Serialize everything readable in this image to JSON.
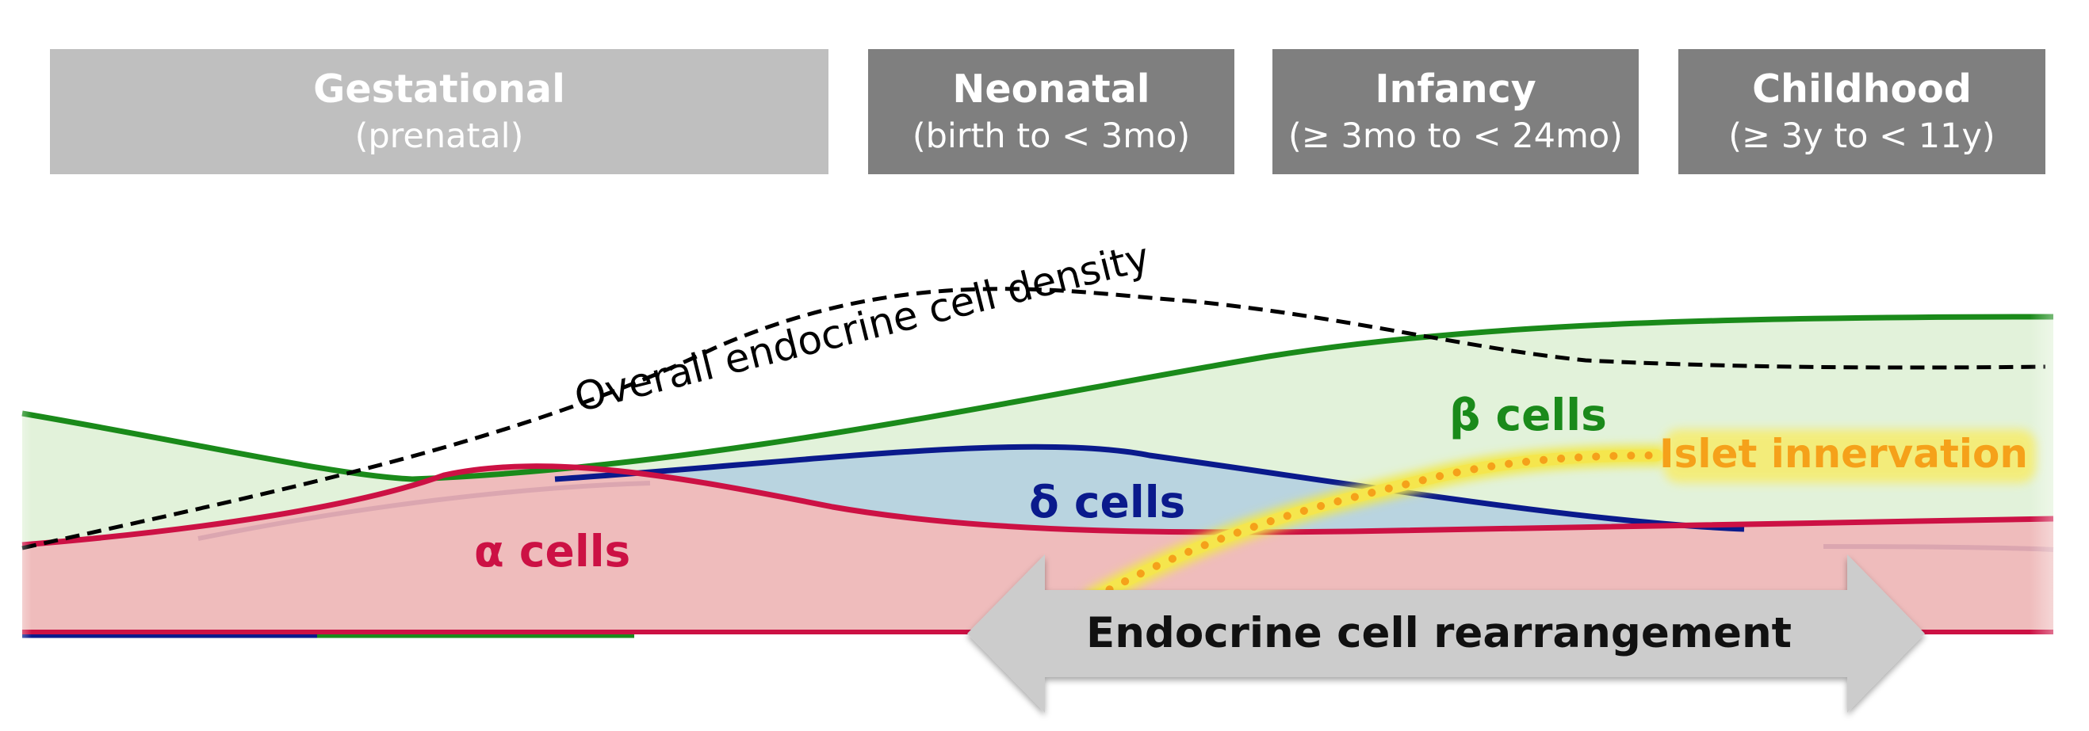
{
  "phases": [
    {
      "title": "Gestational",
      "subtitle": "(prenatal)",
      "shade": "light"
    },
    {
      "title": "Neonatal",
      "subtitle": "(birth to < 3mo)",
      "shade": "dark"
    },
    {
      "title": "Infancy",
      "subtitle": "(≥ 3mo to < 24mo)",
      "shade": "dark"
    },
    {
      "title": "Childhood",
      "subtitle": "(≥ 3y to < 11y)",
      "shade": "dark"
    }
  ],
  "labels": {
    "density": "Overall endocrine cell density",
    "beta": "β cells",
    "delta": "δ cells",
    "alpha": "α cells",
    "innervation": "Islet innervation",
    "rearrangement": "Endocrine cell rearrangement"
  },
  "colors": {
    "beta": "#1a8a1a",
    "beta_fill": "#e2f2da",
    "delta": "#0a1a8c",
    "delta_fill": "#b9d4e0",
    "alpha": "#cc1144",
    "alpha_fill": "#efbcbc",
    "innervation": "#f5a11a",
    "innervation_glow": "#f2e84a",
    "density": "#000000",
    "arrow": "#cccccc",
    "phase_light": "#bfbfbf",
    "phase_dark": "#7f7f7f"
  }
}
